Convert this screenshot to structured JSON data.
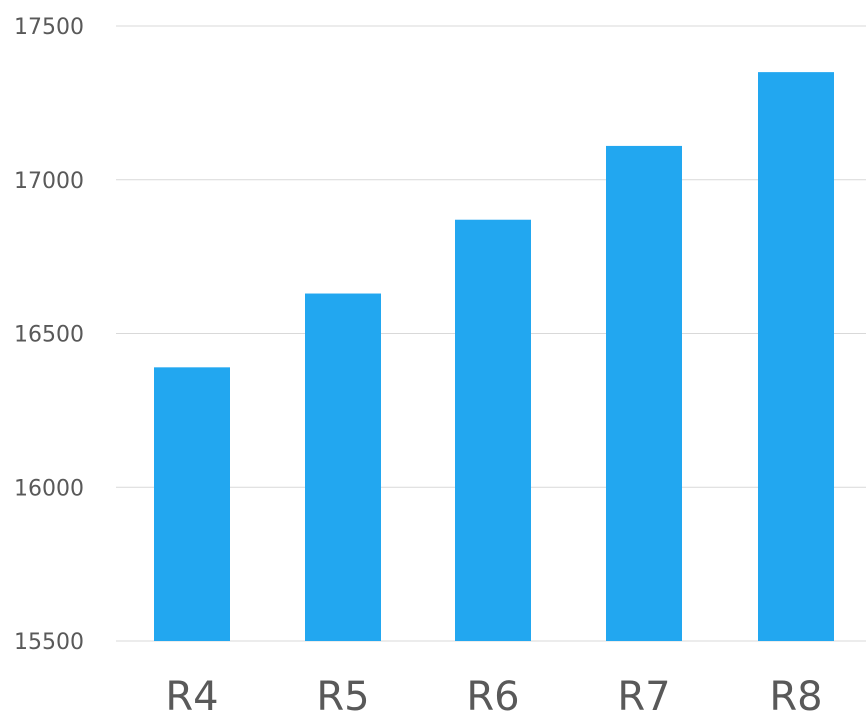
{
  "chart_data": {
    "type": "bar",
    "title": "",
    "xlabel": "",
    "ylabel": "",
    "categories": [
      "R4",
      "R5",
      "R6",
      "R7",
      "R8"
    ],
    "values": [
      16390,
      16630,
      16870,
      17110,
      17350
    ],
    "ylim": [
      15500,
      17500
    ],
    "yticks": [
      17500,
      17000,
      16500,
      16000,
      15500
    ],
    "grid": true,
    "legend": "none",
    "colors": {
      "bar": "#22a7f0"
    }
  }
}
